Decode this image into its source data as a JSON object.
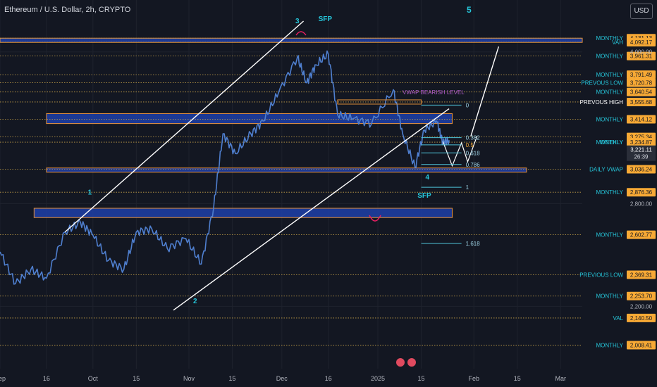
{
  "header": {
    "title": "Ethereum / U.S. Dollar, 2h, CRYPTO",
    "currency": "USD"
  },
  "colors": {
    "background": "#131722",
    "grid": "#1e222d",
    "candles": "#4f7fcf",
    "zone_fill": "#1e3fa8",
    "zone_border": "#e8923a",
    "level_line": "#c8a248",
    "level_badge": "#f7a935",
    "fib": "#4fc3d8",
    "trendline": "#ffffff",
    "label_text": "#26c6da",
    "sfp_arc": "#e91e63",
    "vwap_text": "#b05cc8"
  },
  "chart_data": {
    "type": "line",
    "symbol": "ETHUSD",
    "interval": "2h",
    "x_range": [
      "2024-09-01",
      "2025-03-08"
    ],
    "y_range": [
      1900,
      4300
    ],
    "y_scale": "log",
    "grid": true,
    "x_ticks": [
      "Sep",
      "16",
      "Oct",
      "15",
      "Nov",
      "15",
      "Dec",
      "16",
      "2025",
      "15",
      "Feb",
      "15",
      "Mar"
    ],
    "y_ticks": [
      "4,000.00",
      "2,800.00",
      "2,200.00"
    ],
    "price_series": {
      "x": [
        "2024-09-01",
        "2024-09-06",
        "2024-09-11",
        "2024-09-16",
        "2024-09-22",
        "2024-09-27",
        "2024-10-01",
        "2024-10-06",
        "2024-10-11",
        "2024-10-15",
        "2024-10-20",
        "2024-10-25",
        "2024-10-31",
        "2024-11-05",
        "2024-11-09",
        "2024-11-12",
        "2024-11-16",
        "2024-11-21",
        "2024-11-25",
        "2024-11-30",
        "2024-12-06",
        "2024-12-09",
        "2024-12-12",
        "2024-12-16",
        "2024-12-19",
        "2024-12-24",
        "2024-12-30",
        "2025-01-06",
        "2025-01-09",
        "2025-01-13",
        "2025-01-16",
        "2025-01-20",
        "2025-01-22",
        "2025-01-24"
      ],
      "y": [
        2500,
        2320,
        2400,
        2350,
        2620,
        2680,
        2600,
        2450,
        2400,
        2620,
        2640,
        2520,
        2580,
        2430,
        2780,
        3300,
        3150,
        3300,
        3400,
        3640,
        3950,
        3720,
        3880,
        3980,
        3450,
        3420,
        3380,
        3660,
        3300,
        3050,
        3330,
        3400,
        3230,
        3250
      ]
    },
    "horizontal_levels": [
      {
        "label": "MONTHLY",
        "price": "4,131.13"
      },
      {
        "label": "VAH",
        "price": "4,092.17"
      },
      {
        "label": "MONTHLY",
        "price": "3,961.31"
      },
      {
        "label": "MONTHLY",
        "price": "3,791.49"
      },
      {
        "label": "PREVOUS LOW",
        "price": "3,720.78"
      },
      {
        "label": "MONTHLY",
        "price": "3,640.54"
      },
      {
        "label": "PREVOUS HIGH",
        "price": "3,555.68"
      },
      {
        "label": "MONTHLY",
        "price": "3,414.12"
      },
      {
        "label": "",
        "price": "3,275.34"
      },
      {
        "label": "WEEKLY",
        "price": "3,234.87"
      },
      {
        "label": "MONTHLY",
        "price": "3,234.87"
      },
      {
        "label": "DAILY VWAP",
        "price": "3,036.24"
      },
      {
        "label": "MONTHLY",
        "price": "2,876.36"
      },
      {
        "label": "MONTHLY",
        "price": "2,602.77"
      },
      {
        "label": "PREVIOUS LOW",
        "price": "2,369.31"
      },
      {
        "label": "MONTHLY",
        "price": "2,253.70"
      },
      {
        "label": "VAL",
        "price": "2,140.50"
      },
      {
        "label": "MONTHLY",
        "price": "2,008.41"
      }
    ],
    "current_price": {
      "price": "3,221.11",
      "countdown": "26:39"
    },
    "zones": [
      {
        "from": "2024-09-01",
        "to": "2025-03-08",
        "low": 4092.17,
        "high": 4131.13
      },
      {
        "from": "2024-09-16",
        "to": "2025-01-25",
        "low": 3380,
        "high": 3460
      },
      {
        "from": "2024-09-16",
        "to": "2025-02-18",
        "low": 3025,
        "high": 3045
      },
      {
        "from": "2024-09-12",
        "to": "2025-01-25",
        "low": 2710,
        "high": 2770
      }
    ],
    "fib_levels": [
      {
        "label": "0",
        "price": 3530
      },
      {
        "label": "0.382",
        "price": 3270
      },
      {
        "label": "0.5",
        "price": 3215
      },
      {
        "label": "0.618",
        "price": 3155
      },
      {
        "label": "0.786",
        "price": 3070
      },
      {
        "label": "1",
        "price": 2910
      },
      {
        "label": "1.618",
        "price": 2550
      }
    ],
    "annotations": {
      "waves": [
        "1",
        "2",
        "3",
        "4",
        "5"
      ],
      "sfp": [
        "SFP",
        "SFP"
      ],
      "vwap_text": "VWAP BEARISH LEVEL"
    }
  }
}
